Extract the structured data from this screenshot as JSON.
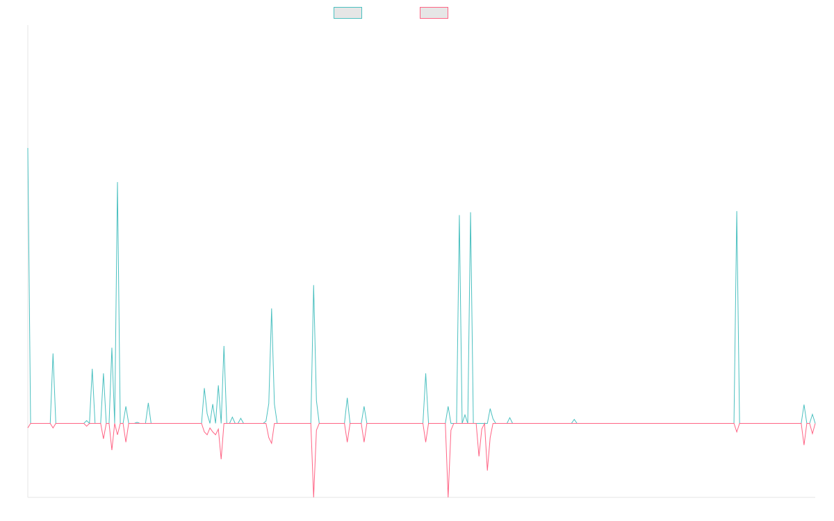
{
  "chart_data": {
    "type": "line",
    "x_count": 282,
    "ylim": [
      -130,
      700
    ],
    "grid": false,
    "legend": "top-center",
    "series": [
      {
        "name": "",
        "color": "#4bc0c0",
        "points": [
          [
            0,
            484
          ],
          [
            1,
            0
          ],
          [
            3,
            0
          ],
          [
            9,
            123
          ],
          [
            10,
            0
          ],
          [
            13,
            0
          ],
          [
            21,
            5
          ],
          [
            22,
            0
          ],
          [
            23,
            96
          ],
          [
            24,
            0
          ],
          [
            26,
            0
          ],
          [
            27,
            88
          ],
          [
            28,
            0
          ],
          [
            30,
            133
          ],
          [
            31,
            0
          ],
          [
            32,
            424
          ],
          [
            33,
            0
          ],
          [
            35,
            30
          ],
          [
            36,
            0
          ],
          [
            39,
            2
          ],
          [
            40,
            0
          ],
          [
            43,
            36
          ],
          [
            44,
            0
          ],
          [
            63,
            62
          ],
          [
            64,
            17
          ],
          [
            65,
            0
          ],
          [
            66,
            34
          ],
          [
            67,
            0
          ],
          [
            68,
            67
          ],
          [
            69,
            0
          ],
          [
            70,
            136
          ],
          [
            71,
            0
          ],
          [
            73,
            11
          ],
          [
            74,
            0
          ],
          [
            76,
            9
          ],
          [
            77,
            0
          ],
          [
            85,
            4
          ],
          [
            86,
            35
          ],
          [
            87,
            202
          ],
          [
            88,
            34
          ],
          [
            89,
            0
          ],
          [
            102,
            243
          ],
          [
            103,
            40
          ],
          [
            104,
            0
          ],
          [
            113,
            0
          ],
          [
            114,
            45
          ],
          [
            115,
            0
          ],
          [
            119,
            0
          ],
          [
            120,
            30
          ],
          [
            121,
            0
          ],
          [
            141,
            0
          ],
          [
            142,
            88
          ],
          [
            143,
            0
          ],
          [
            149,
            0
          ],
          [
            150,
            30
          ],
          [
            151,
            0
          ],
          [
            152,
            0
          ],
          [
            153,
            0
          ],
          [
            154,
            366
          ],
          [
            155,
            0
          ],
          [
            156,
            15
          ],
          [
            157,
            0
          ],
          [
            158,
            371
          ],
          [
            159,
            0
          ],
          [
            160,
            0
          ],
          [
            161,
            0
          ],
          [
            162,
            0
          ],
          [
            163,
            0
          ],
          [
            164,
            0
          ],
          [
            165,
            26
          ],
          [
            166,
            8
          ],
          [
            167,
            0
          ],
          [
            168,
            0
          ],
          [
            169,
            0
          ],
          [
            170,
            0
          ],
          [
            171,
            0
          ],
          [
            172,
            10
          ],
          [
            173,
            0
          ],
          [
            195,
            7
          ],
          [
            196,
            0
          ],
          [
            252,
            0
          ],
          [
            253,
            373
          ],
          [
            254,
            0
          ],
          [
            276,
            0
          ],
          [
            277,
            33
          ],
          [
            278,
            0
          ],
          [
            279,
            0
          ],
          [
            280,
            16
          ],
          [
            281,
            0
          ]
        ]
      },
      {
        "name": "",
        "color": "#ff6384",
        "points": [
          [
            0,
            -8
          ],
          [
            1,
            0
          ],
          [
            9,
            -8
          ],
          [
            10,
            0
          ],
          [
            21,
            -5
          ],
          [
            22,
            0
          ],
          [
            27,
            -27
          ],
          [
            28,
            0
          ],
          [
            30,
            -47
          ],
          [
            31,
            0
          ],
          [
            32,
            -20
          ],
          [
            33,
            0
          ],
          [
            35,
            -33
          ],
          [
            36,
            0
          ],
          [
            63,
            -15
          ],
          [
            64,
            -20
          ],
          [
            65,
            -8
          ],
          [
            66,
            -15
          ],
          [
            67,
            -20
          ],
          [
            68,
            -10
          ],
          [
            69,
            -63
          ],
          [
            70,
            0
          ],
          [
            86,
            -25
          ],
          [
            87,
            -35
          ],
          [
            88,
            0
          ],
          [
            102,
            -130
          ],
          [
            103,
            -12
          ],
          [
            104,
            0
          ],
          [
            113,
            0
          ],
          [
            114,
            -33
          ],
          [
            115,
            0
          ],
          [
            119,
            0
          ],
          [
            120,
            -33
          ],
          [
            121,
            0
          ],
          [
            141,
            0
          ],
          [
            142,
            -33
          ],
          [
            143,
            0
          ],
          [
            149,
            0
          ],
          [
            150,
            -130
          ],
          [
            151,
            -12
          ],
          [
            152,
            0
          ],
          [
            160,
            0
          ],
          [
            161,
            -58
          ],
          [
            162,
            -10
          ],
          [
            163,
            0
          ],
          [
            164,
            -83
          ],
          [
            165,
            -25
          ],
          [
            166,
            0
          ],
          [
            252,
            0
          ],
          [
            253,
            -15
          ],
          [
            254,
            0
          ],
          [
            276,
            0
          ],
          [
            277,
            -38
          ],
          [
            278,
            0
          ],
          [
            279,
            0
          ],
          [
            280,
            -18
          ],
          [
            281,
            0
          ]
        ]
      }
    ]
  }
}
